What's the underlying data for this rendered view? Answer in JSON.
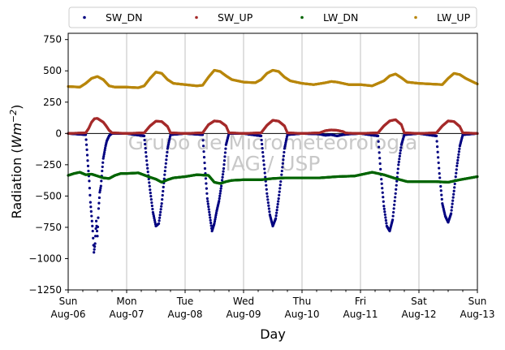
{
  "chart_data": {
    "type": "scatter",
    "title": "",
    "xlabel": "Day",
    "ylabel_prefix": "Radiation (",
    "ylabel_unit": "Wm",
    "ylabel_exp": "−2",
    "ylabel_suffix": ")",
    "xlim": [
      0,
      7
    ],
    "ylim": [
      -1250,
      800
    ],
    "yticks": [
      -1250,
      -1000,
      -750,
      -500,
      -250,
      0,
      250,
      500,
      750
    ],
    "ytick_labels": [
      "−1250",
      "−1000",
      "−750",
      "−500",
      "−250",
      "0",
      "250",
      "500",
      "750"
    ],
    "xticks": [
      {
        "x": 0,
        "day": "Sun",
        "date": "Aug-06"
      },
      {
        "x": 1,
        "day": "Mon",
        "date": "Aug-07"
      },
      {
        "x": 2,
        "day": "Tue",
        "date": "Aug-08"
      },
      {
        "x": 3,
        "day": "Wed",
        "date": "Aug-09"
      },
      {
        "x": 4,
        "day": "Thu",
        "date": "Aug-10"
      },
      {
        "x": 5,
        "day": "Fri",
        "date": "Aug-11"
      },
      {
        "x": 6,
        "day": "Sat",
        "date": "Aug-12"
      },
      {
        "x": 7,
        "day": "Sun",
        "date": "Aug-13"
      }
    ],
    "grid": "vertical",
    "zero_line": 0,
    "legend_position": "top, outside plot",
    "watermark": [
      "Grupo de Micrometeorologia",
      "IAG / USP"
    ],
    "series": [
      {
        "name": "SW_DN",
        "color": "#000080",
        "x": [
          0.0,
          0.3,
          0.32,
          0.34,
          0.36,
          0.38,
          0.4,
          0.42,
          0.44,
          0.46,
          0.48,
          0.5,
          0.52,
          0.54,
          0.56,
          0.58,
          0.6,
          0.62,
          0.64,
          0.66,
          0.68,
          0.7,
          0.72,
          0.75,
          1.0,
          1.3,
          1.35,
          1.4,
          1.45,
          1.5,
          1.55,
          1.6,
          1.65,
          1.7,
          1.75,
          2.0,
          2.3,
          2.34,
          2.38,
          2.42,
          2.46,
          2.5,
          2.54,
          2.58,
          2.62,
          2.66,
          2.7,
          2.75,
          3.0,
          3.3,
          3.35,
          3.4,
          3.45,
          3.5,
          3.55,
          3.6,
          3.65,
          3.7,
          3.75,
          4.0,
          4.3,
          4.4,
          4.5,
          4.6,
          4.7,
          4.8,
          5.0,
          5.3,
          5.35,
          5.4,
          5.45,
          5.5,
          5.55,
          5.6,
          5.65,
          5.7,
          5.75,
          6.0,
          6.3,
          6.35,
          6.4,
          6.45,
          6.5,
          6.55,
          6.6,
          6.65,
          6.7,
          6.75,
          7.0
        ],
        "y": [
          0,
          -10,
          -130,
          -260,
          -380,
          -550,
          -660,
          -780,
          -950,
          -880,
          -700,
          -820,
          -600,
          -470,
          -420,
          -300,
          -200,
          -150,
          -100,
          -60,
          -40,
          -20,
          -10,
          0,
          0,
          -20,
          -250,
          -450,
          -630,
          -740,
          -720,
          -560,
          -330,
          -120,
          -10,
          0,
          -10,
          -280,
          -520,
          -650,
          -780,
          -720,
          -620,
          -540,
          -420,
          -280,
          -90,
          0,
          0,
          -20,
          -250,
          -480,
          -650,
          -740,
          -680,
          -520,
          -330,
          -120,
          -10,
          0,
          -5,
          -15,
          -10,
          -20,
          -10,
          -5,
          0,
          -20,
          -330,
          -580,
          -740,
          -780,
          -690,
          -480,
          -250,
          -90,
          -10,
          0,
          -20,
          -320,
          -560,
          -660,
          -710,
          -640,
          -460,
          -260,
          -100,
          -10,
          0
        ]
      },
      {
        "name": "SW_UP",
        "color": "#a52a2a",
        "x": [
          0.0,
          0.3,
          0.35,
          0.4,
          0.45,
          0.5,
          0.55,
          0.6,
          0.65,
          0.7,
          0.75,
          1.0,
          1.3,
          1.4,
          1.5,
          1.6,
          1.7,
          1.75,
          2.0,
          2.3,
          2.4,
          2.5,
          2.6,
          2.7,
          2.75,
          3.0,
          3.3,
          3.4,
          3.5,
          3.6,
          3.7,
          3.75,
          4.0,
          4.3,
          4.4,
          4.5,
          4.6,
          4.7,
          4.75,
          5.0,
          5.3,
          5.4,
          5.5,
          5.6,
          5.7,
          5.75,
          6.0,
          6.3,
          6.4,
          6.5,
          6.6,
          6.7,
          6.75,
          7.0
        ],
        "y": [
          0,
          5,
          40,
          90,
          118,
          120,
          105,
          90,
          60,
          25,
          5,
          0,
          5,
          60,
          98,
          95,
          55,
          5,
          0,
          5,
          70,
          100,
          95,
          60,
          5,
          0,
          5,
          65,
          105,
          98,
          60,
          5,
          0,
          5,
          22,
          28,
          25,
          15,
          3,
          0,
          5,
          60,
          100,
          110,
          70,
          5,
          0,
          5,
          60,
          100,
          95,
          55,
          5,
          0
        ]
      },
      {
        "name": "LW_DN",
        "color": "#006400",
        "x": [
          0.0,
          0.1,
          0.2,
          0.3,
          0.4,
          0.5,
          0.6,
          0.7,
          0.8,
          0.9,
          1.0,
          1.2,
          1.4,
          1.5,
          1.6,
          1.7,
          1.8,
          2.0,
          2.2,
          2.4,
          2.5,
          2.6,
          2.7,
          2.8,
          3.0,
          3.3,
          3.5,
          3.7,
          4.0,
          4.3,
          4.6,
          4.9,
          5.1,
          5.2,
          5.4,
          5.6,
          5.8,
          6.0,
          6.3,
          6.5,
          6.7,
          7.0
        ],
        "y": [
          -335,
          -320,
          -310,
          -330,
          -325,
          -340,
          -355,
          -360,
          -335,
          -320,
          -320,
          -315,
          -350,
          -365,
          -390,
          -370,
          -355,
          -345,
          -330,
          -335,
          -390,
          -400,
          -385,
          -375,
          -370,
          -370,
          -360,
          -355,
          -355,
          -355,
          -345,
          -340,
          -320,
          -310,
          -330,
          -360,
          -385,
          -385,
          -385,
          -390,
          -370,
          -345
        ]
      },
      {
        "name": "LW_UP",
        "color": "#b8860b",
        "x": [
          0.0,
          0.2,
          0.3,
          0.4,
          0.5,
          0.6,
          0.7,
          0.8,
          1.0,
          1.2,
          1.3,
          1.4,
          1.5,
          1.6,
          1.7,
          1.8,
          2.0,
          2.2,
          2.3,
          2.4,
          2.5,
          2.6,
          2.7,
          2.8,
          3.0,
          3.2,
          3.3,
          3.4,
          3.5,
          3.6,
          3.7,
          3.8,
          4.0,
          4.2,
          4.4,
          4.5,
          4.6,
          4.8,
          5.0,
          5.2,
          5.4,
          5.5,
          5.6,
          5.7,
          5.8,
          6.0,
          6.2,
          6.4,
          6.5,
          6.6,
          6.7,
          6.8,
          7.0
        ],
        "y": [
          375,
          370,
          400,
          440,
          455,
          430,
          380,
          370,
          370,
          365,
          380,
          440,
          490,
          480,
          430,
          400,
          390,
          380,
          385,
          450,
          505,
          495,
          460,
          430,
          410,
          405,
          430,
          480,
          505,
          495,
          450,
          420,
          400,
          390,
          405,
          415,
          410,
          390,
          390,
          380,
          420,
          460,
          475,
          445,
          410,
          400,
          395,
          390,
          440,
          480,
          470,
          440,
          395
        ]
      }
    ]
  }
}
